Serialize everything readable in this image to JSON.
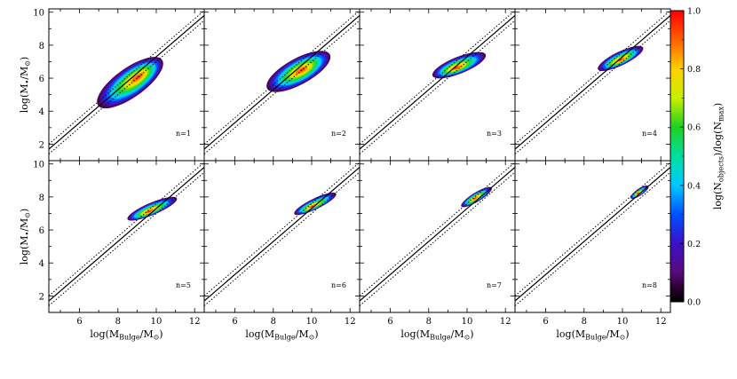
{
  "chart_data": {
    "type": "heatmap",
    "xlabel": "log(M_Bulge/M_⊙)",
    "ylabel": "log(M_•/M_⊙)",
    "x_ticks": [
      "6",
      "8",
      "10",
      "12"
    ],
    "y_ticks": [
      "2",
      "4",
      "6",
      "8",
      "10"
    ],
    "xlim": [
      4.4,
      12.5
    ],
    "ylim": [
      1,
      10.2
    ],
    "colorbar": {
      "label": "log(N_objects)/log(N_max)",
      "ticks": [
        "0.0",
        "0.2",
        "0.4",
        "0.6",
        "0.8",
        "1.0"
      ],
      "range": [
        0,
        1
      ]
    },
    "reference_relation": {
      "slope": 1,
      "intercept": -2.7,
      "scatter": 0.3
    },
    "panels": [
      {
        "label": "n=1",
        "cx": 8.6,
        "cy": 5.7,
        "a": 2.2,
        "b": 0.95,
        "angle": 0.62,
        "peak_x": 9.1,
        "peak_y": 6.1
      },
      {
        "label": "n=2",
        "cx": 9.3,
        "cy": 6.4,
        "a": 2.0,
        "b": 0.85,
        "angle": 0.5,
        "peak_x": 9.5,
        "peak_y": 6.5
      },
      {
        "label": "n=3",
        "cx": 9.6,
        "cy": 6.8,
        "a": 1.6,
        "b": 0.55,
        "angle": 0.38,
        "peak_x": 9.4,
        "peak_y": 6.6
      },
      {
        "label": "n=4",
        "cx": 9.9,
        "cy": 7.2,
        "a": 1.4,
        "b": 0.45,
        "angle": 0.45,
        "peak_x": 9.9,
        "peak_y": 7.1
      },
      {
        "label": "n=5",
        "cx": 9.8,
        "cy": 7.3,
        "a": 1.5,
        "b": 0.4,
        "angle": 0.4,
        "peak_x": 9.6,
        "peak_y": 7.1
      },
      {
        "label": "n=6",
        "cx": 10.2,
        "cy": 7.6,
        "a": 1.3,
        "b": 0.35,
        "angle": 0.45,
        "peak_x": 10.0,
        "peak_y": 7.4
      },
      {
        "label": "n=7",
        "cx": 10.5,
        "cy": 8.0,
        "a": 1.0,
        "b": 0.3,
        "angle": 0.55,
        "peak_x": 10.4,
        "peak_y": 7.9
      },
      {
        "label": "n=8",
        "cx": 10.9,
        "cy": 8.3,
        "a": 0.6,
        "b": 0.22,
        "angle": 0.6,
        "peak_x": 10.8,
        "peak_y": 8.2
      }
    ]
  }
}
